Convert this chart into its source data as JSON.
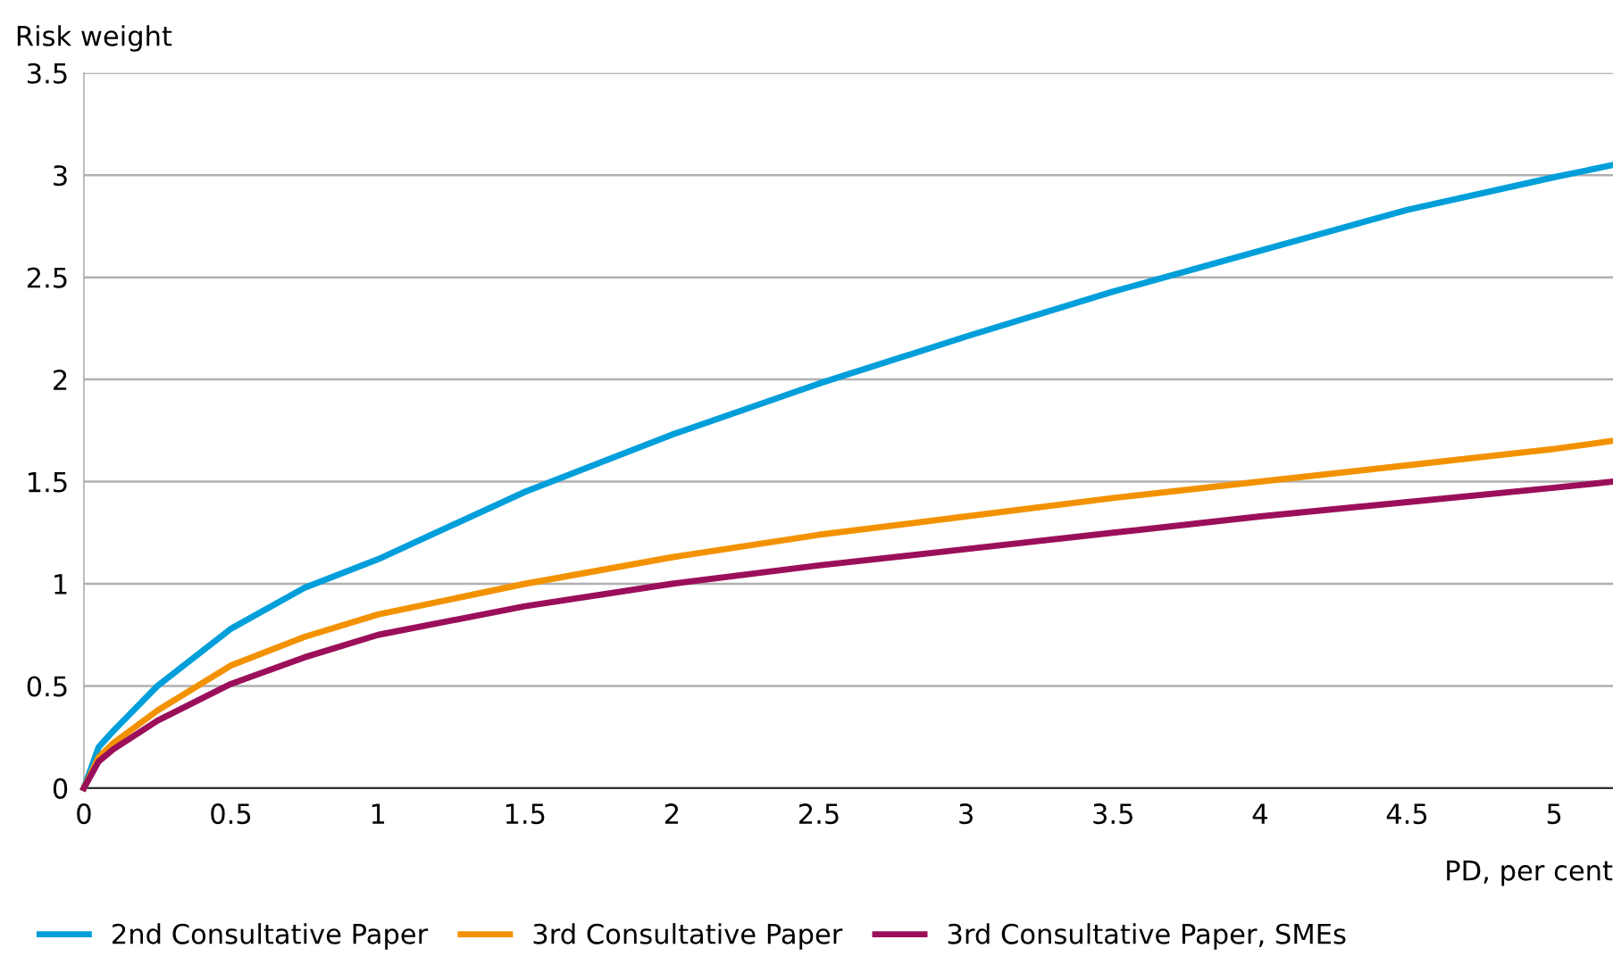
{
  "chart_data": {
    "type": "line",
    "xlabel": "PD, per cent",
    "ylabel": "Risk weight",
    "xlim": [
      0,
      5.2
    ],
    "xticks": [
      0,
      0.5,
      1,
      1.5,
      2,
      2.5,
      3,
      3.5,
      4,
      4.5,
      5
    ],
    "ylim": [
      0,
      3.5
    ],
    "yticks": [
      0,
      0.5,
      1,
      1.5,
      2,
      2.5,
      3,
      3.5
    ],
    "grid": "y",
    "legend": "bottom",
    "marker": "none",
    "line_style": "solid",
    "x": [
      0,
      0.05,
      0.1,
      0.25,
      0.5,
      0.75,
      1,
      1.5,
      2,
      2.5,
      3,
      3.5,
      4,
      4.5,
      5,
      5.2
    ],
    "series": [
      {
        "name": "2nd Consultative Paper",
        "color": "#009fda",
        "values": [
          0,
          0.2,
          0.28,
          0.5,
          0.78,
          0.98,
          1.12,
          1.45,
          1.73,
          1.98,
          2.21,
          2.43,
          2.63,
          2.83,
          2.99,
          3.05
        ]
      },
      {
        "name": "3rd Consultative Paper",
        "color": "#f39200",
        "values": [
          0,
          0.15,
          0.22,
          0.38,
          0.6,
          0.74,
          0.85,
          1.0,
          1.13,
          1.24,
          1.33,
          1.42,
          1.5,
          1.58,
          1.66,
          1.7
        ]
      },
      {
        "name": "3rd Consultative Paper, SMEs",
        "color": "#9b0f5a",
        "values": [
          0,
          0.13,
          0.19,
          0.33,
          0.51,
          0.64,
          0.75,
          0.89,
          1.0,
          1.09,
          1.17,
          1.25,
          1.33,
          1.4,
          1.47,
          1.5
        ]
      }
    ]
  }
}
